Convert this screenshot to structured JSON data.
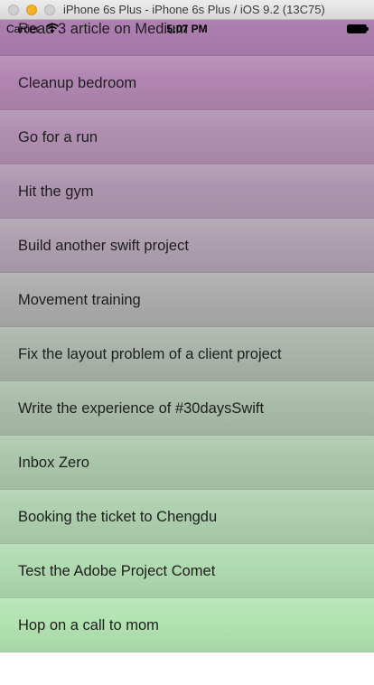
{
  "window": {
    "title": "iPhone 6s Plus - iPhone 6s Plus / iOS 9.2 (13C75)"
  },
  "status_bar": {
    "carrier": "Carrier",
    "time": "5:07 PM",
    "icons": [
      "wifi-icon",
      "battery-icon"
    ]
  },
  "tasks": [
    {
      "label": "Read 3 article on Medium",
      "color": "#ad7fb0"
    },
    {
      "label": "Cleanup bedroom",
      "color": "#b186b2"
    },
    {
      "label": "Go for a run",
      "color": "#b08eb1"
    },
    {
      "label": "Hit the gym",
      "color": "#ae95af"
    },
    {
      "label": "Build another swift project",
      "color": "#aea0ae"
    },
    {
      "label": "Movement training",
      "color": "#ababab"
    },
    {
      "label": "Fix the layout problem of a client project",
      "color": "#aab4aa"
    },
    {
      "label": "Write the experience of #30daysSwift",
      "color": "#a9bca9"
    },
    {
      "label": "Inbox Zero",
      "color": "#abc7ab"
    },
    {
      "label": "Booking the ticket to Chengdu",
      "color": "#aed0ae"
    },
    {
      "label": "Test the Adobe Project Comet",
      "color": "#b0dab0"
    },
    {
      "label": "Hop on a call to mom",
      "color": "#b2e3b2"
    }
  ]
}
